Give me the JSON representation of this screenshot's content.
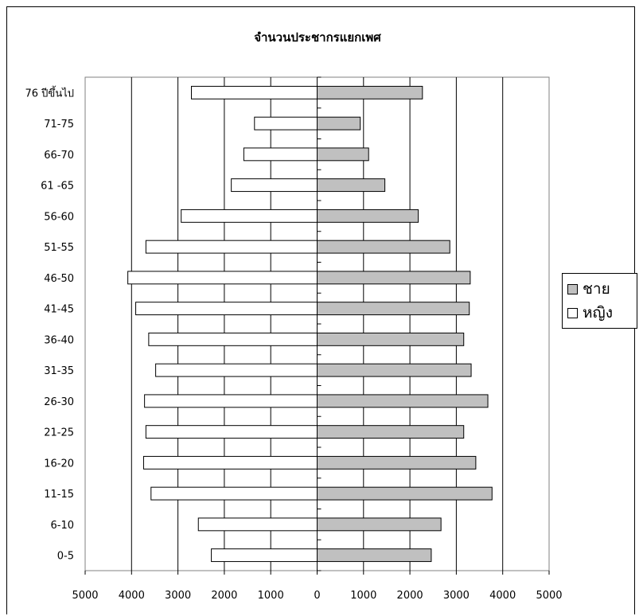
{
  "chart_data": {
    "type": "bar",
    "orientation": "horizontal-diverging",
    "title": "จำนวนประชากรแยกเพศ",
    "categories": [
      "76 ปีขึ้นไป",
      "71-75",
      "66-70",
      "61 -65",
      "56-60",
      "51-55",
      "46-50",
      "41-45",
      "36-40",
      "31-35",
      "26-30",
      "21-25",
      "16-20",
      "11-15",
      "6-10",
      "0-5"
    ],
    "series": [
      {
        "name": "ชาย",
        "color": "#c0c0c0",
        "side": "right",
        "values": [
          2270,
          930,
          1110,
          1460,
          2180,
          2860,
          3300,
          3280,
          3160,
          3320,
          3680,
          3160,
          3420,
          3770,
          2670,
          2460
        ]
      },
      {
        "name": "หญิง",
        "color": "#ffffff",
        "side": "left",
        "values": [
          2710,
          1350,
          1580,
          1850,
          2930,
          3690,
          4080,
          3910,
          3630,
          3480,
          3720,
          3690,
          3740,
          3580,
          2560,
          2280
        ]
      }
    ],
    "xlim": [
      -5000,
      5000
    ],
    "xticks": [
      -5000,
      -4000,
      -3000,
      -2000,
      -1000,
      0,
      1000,
      2000,
      3000,
      4000,
      5000
    ],
    "xtick_labels": [
      "5000",
      "4000",
      "3000",
      "2000",
      "1000",
      "0",
      "1000",
      "2000",
      "3000",
      "4000",
      "5000"
    ],
    "grid": "vertical",
    "legend_position": "right"
  }
}
